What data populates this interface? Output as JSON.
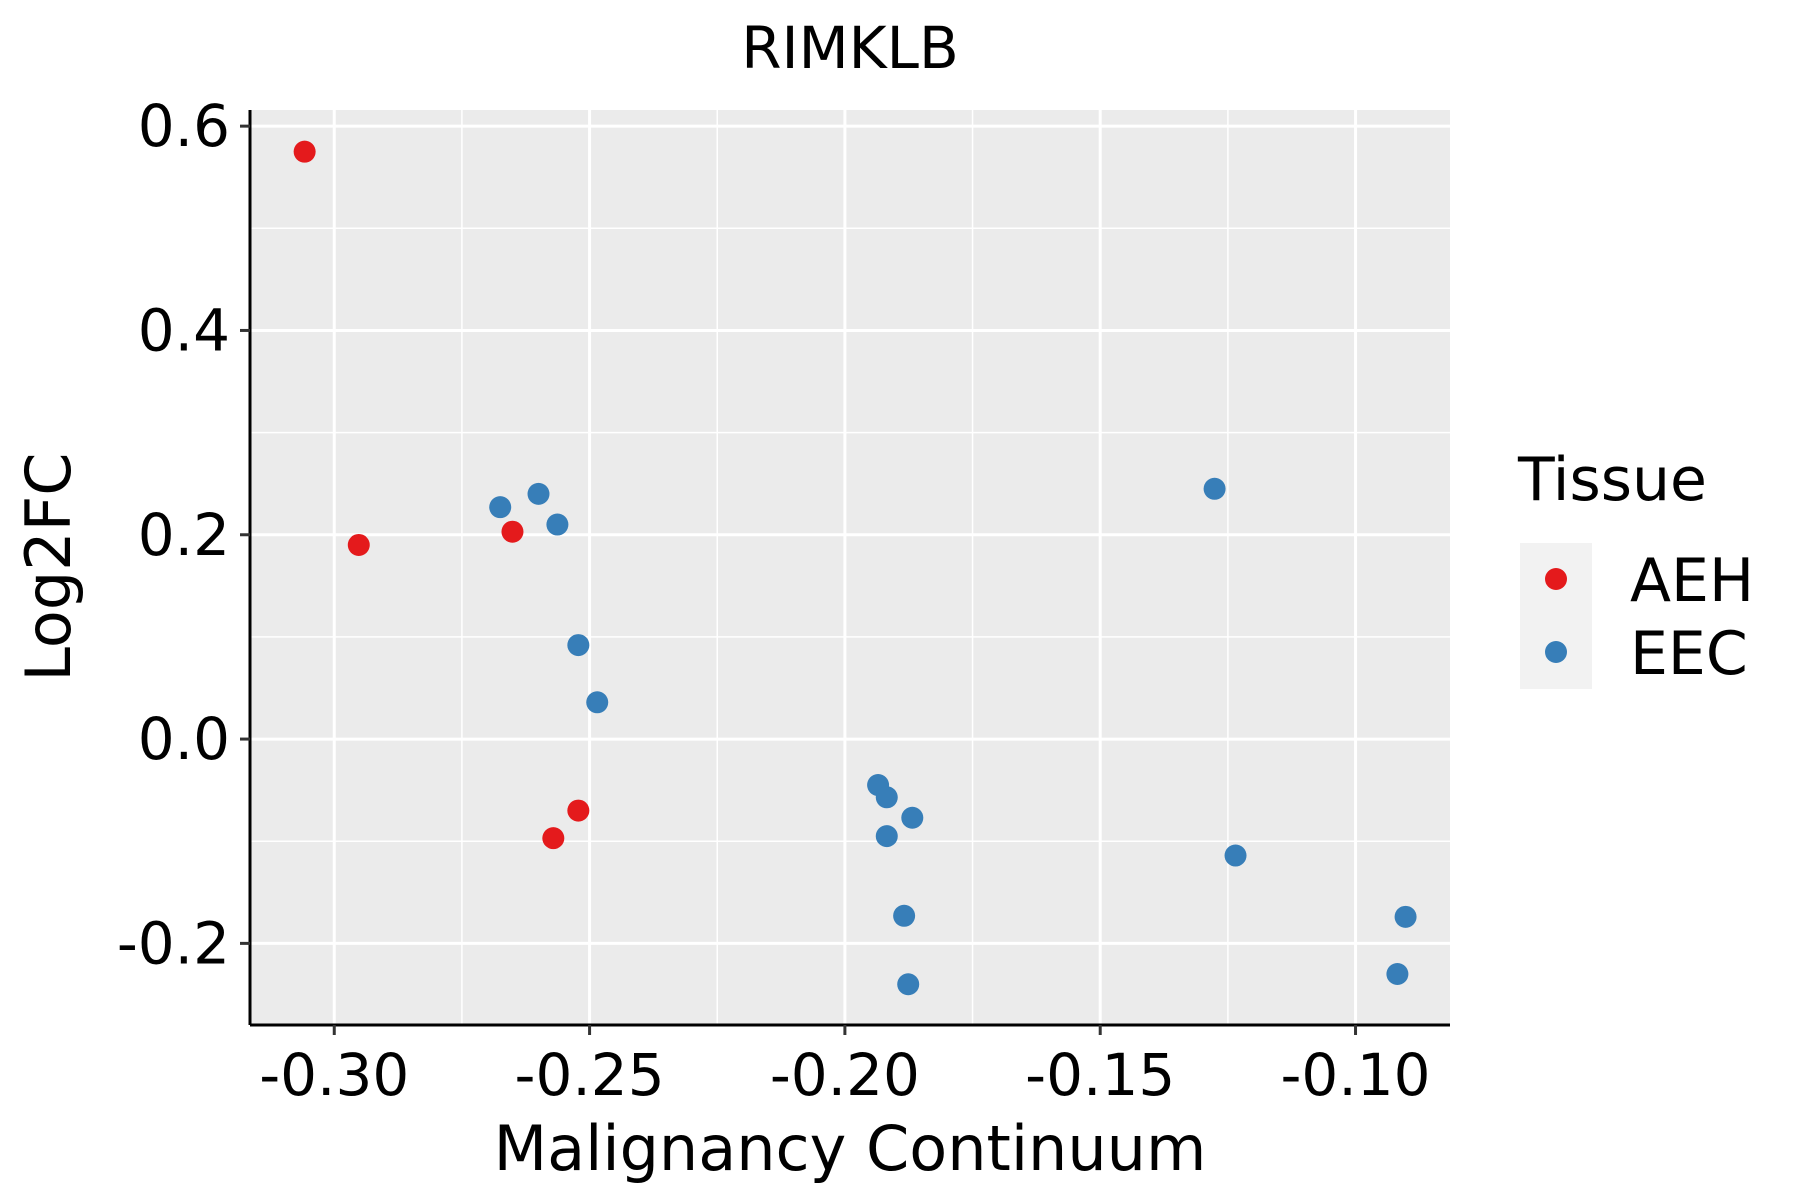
{
  "chart_data": {
    "type": "scatter",
    "title": "RIMKLB",
    "xlabel": "Malignancy Continuum",
    "ylabel": "Log2FC",
    "xlim": [
      -0.3165,
      -0.0815
    ],
    "ylim": [
      -0.2799,
      0.6158
    ],
    "x_ticks": [
      -0.3,
      -0.25,
      -0.2,
      -0.15,
      -0.1
    ],
    "x_tick_labels": [
      "-0.30",
      "-0.25",
      "-0.20",
      "-0.15",
      "-0.10"
    ],
    "y_ticks": [
      -0.2,
      0.0,
      0.2,
      0.4,
      0.6
    ],
    "y_tick_labels": [
      "-0.2",
      "0.0",
      "0.2",
      "0.4",
      "0.6"
    ],
    "grid": true,
    "legend": {
      "title": "Tissue",
      "position": "right",
      "entries": [
        {
          "label": "AEH",
          "color": "#E41A1C"
        },
        {
          "label": "EEC",
          "color": "#377EB8"
        }
      ]
    },
    "series": [
      {
        "name": "AEH",
        "color": "#E41A1C",
        "points": [
          {
            "x": -0.3058,
            "y": 0.575
          },
          {
            "x": -0.2952,
            "y": 0.19
          },
          {
            "x": -0.2651,
            "y": 0.203
          },
          {
            "x": -0.2522,
            "y": -0.07
          },
          {
            "x": -0.2571,
            "y": -0.097
          }
        ]
      },
      {
        "name": "EEC",
        "color": "#377EB8",
        "points": [
          {
            "x": -0.2675,
            "y": 0.227
          },
          {
            "x": -0.26,
            "y": 0.24
          },
          {
            "x": -0.2563,
            "y": 0.21
          },
          {
            "x": -0.2522,
            "y": 0.092
          },
          {
            "x": -0.2485,
            "y": 0.036
          },
          {
            "x": -0.1935,
            "y": -0.045
          },
          {
            "x": -0.1918,
            "y": -0.057
          },
          {
            "x": -0.1868,
            "y": -0.077
          },
          {
            "x": -0.1918,
            "y": -0.095
          },
          {
            "x": -0.1884,
            "y": -0.173
          },
          {
            "x": -0.1876,
            "y": -0.24
          },
          {
            "x": -0.1276,
            "y": 0.245
          },
          {
            "x": -0.1235,
            "y": -0.114
          },
          {
            "x": -0.0902,
            "y": -0.174
          },
          {
            "x": -0.0918,
            "y": -0.23
          }
        ]
      }
    ]
  }
}
